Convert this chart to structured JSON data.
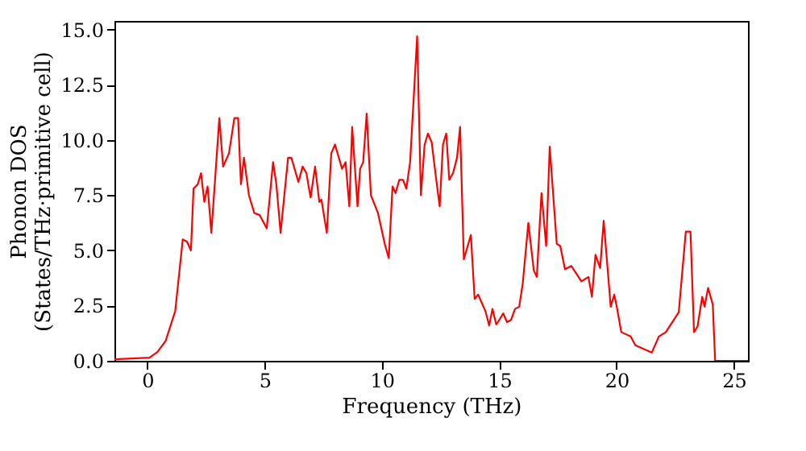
{
  "chart_data": {
    "type": "line",
    "xlabel": "Frequency (THz)",
    "ylabel": "Phonon DOS\n(States/THz·primitive cell)",
    "xlim": [
      -1.4,
      25.6
    ],
    "ylim": [
      0,
      15.4
    ],
    "xticks": [
      0,
      5,
      10,
      15,
      20,
      25
    ],
    "yticks": [
      {
        "value": 0,
        "label": "0.0"
      },
      {
        "value": 2.5,
        "label": "2.5"
      },
      {
        "value": 5,
        "label": "5.0"
      },
      {
        "value": 7.5,
        "label": "7.5"
      },
      {
        "value": 10,
        "label": "10.0"
      },
      {
        "value": 12.5,
        "label": "12.5"
      },
      {
        "value": 15,
        "label": "15.0"
      }
    ],
    "grid": false,
    "line_style": "solid",
    "series": [
      {
        "color": "#ff0000",
        "x": [
          -1.4,
          0.09,
          0.43,
          0.78,
          1.19,
          1.51,
          1.69,
          1.86,
          1.97,
          2.15,
          2.29,
          2.43,
          2.57,
          2.73,
          3.07,
          3.23,
          3.48,
          3.71,
          3.87,
          3.99,
          4.12,
          4.33,
          4.56,
          4.79,
          5.09,
          5.36,
          5.5,
          5.68,
          6.0,
          6.14,
          6.44,
          6.62,
          6.78,
          6.96,
          7.15,
          7.33,
          7.42,
          7.65,
          7.84,
          8.0,
          8.3,
          8.45,
          8.61,
          8.73,
          8.96,
          9.07,
          9.2,
          9.35,
          9.53,
          9.83,
          10.12,
          10.29,
          10.45,
          10.58,
          10.74,
          10.9,
          11.04,
          11.2,
          11.5,
          11.66,
          11.82,
          11.96,
          12.12,
          12.28,
          12.46,
          12.6,
          12.74,
          12.87,
          13.03,
          13.2,
          13.33,
          13.49,
          13.79,
          13.95,
          14.1,
          14.41,
          14.57,
          14.71,
          14.87,
          15.0,
          15.17,
          15.33,
          15.5,
          15.67,
          15.85,
          16.0,
          16.24,
          16.47,
          16.6,
          16.8,
          17.0,
          17.15,
          17.45,
          17.6,
          17.8,
          18.07,
          18.5,
          18.8,
          18.95,
          19.1,
          19.3,
          19.45,
          19.75,
          19.9,
          20.0,
          20.2,
          20.6,
          20.8,
          21.5,
          21.8,
          22.1,
          22.65,
          22.95,
          23.15,
          23.3,
          23.45,
          23.65,
          23.75,
          23.9,
          24.1,
          24.2,
          25.6
        ],
        "values": [
          0.07,
          0.14,
          0.4,
          0.9,
          2.25,
          5.5,
          5.4,
          5.0,
          7.8,
          8.0,
          8.5,
          7.2,
          7.9,
          5.8,
          11.0,
          8.8,
          9.4,
          11.0,
          11.0,
          8.0,
          9.2,
          7.5,
          6.7,
          6.6,
          6.0,
          9.0,
          8.0,
          5.8,
          9.2,
          9.2,
          8.1,
          8.8,
          8.5,
          7.4,
          8.8,
          7.2,
          7.3,
          5.8,
          9.4,
          9.8,
          8.7,
          9.0,
          7.0,
          10.6,
          7.0,
          8.7,
          9.0,
          11.2,
          7.5,
          6.7,
          5.3,
          4.65,
          7.9,
          7.6,
          8.2,
          8.2,
          7.8,
          9.0,
          14.7,
          7.5,
          9.8,
          10.3,
          9.9,
          8.5,
          7.0,
          9.8,
          10.3,
          8.2,
          8.5,
          9.2,
          10.6,
          4.6,
          5.7,
          2.8,
          3.0,
          2.25,
          1.6,
          2.35,
          1.65,
          1.85,
          2.15,
          1.75,
          1.85,
          2.35,
          2.45,
          3.5,
          6.25,
          4.1,
          3.8,
          7.6,
          5.2,
          9.7,
          5.3,
          5.2,
          4.15,
          4.3,
          3.6,
          3.8,
          2.9,
          4.8,
          4.2,
          6.35,
          2.45,
          3.0,
          2.5,
          1.3,
          1.1,
          0.7,
          0.37,
          1.1,
          1.3,
          2.2,
          5.85,
          5.85,
          1.3,
          1.55,
          2.9,
          2.45,
          3.3,
          2.55,
          0.0,
          0.0
        ]
      }
    ]
  }
}
